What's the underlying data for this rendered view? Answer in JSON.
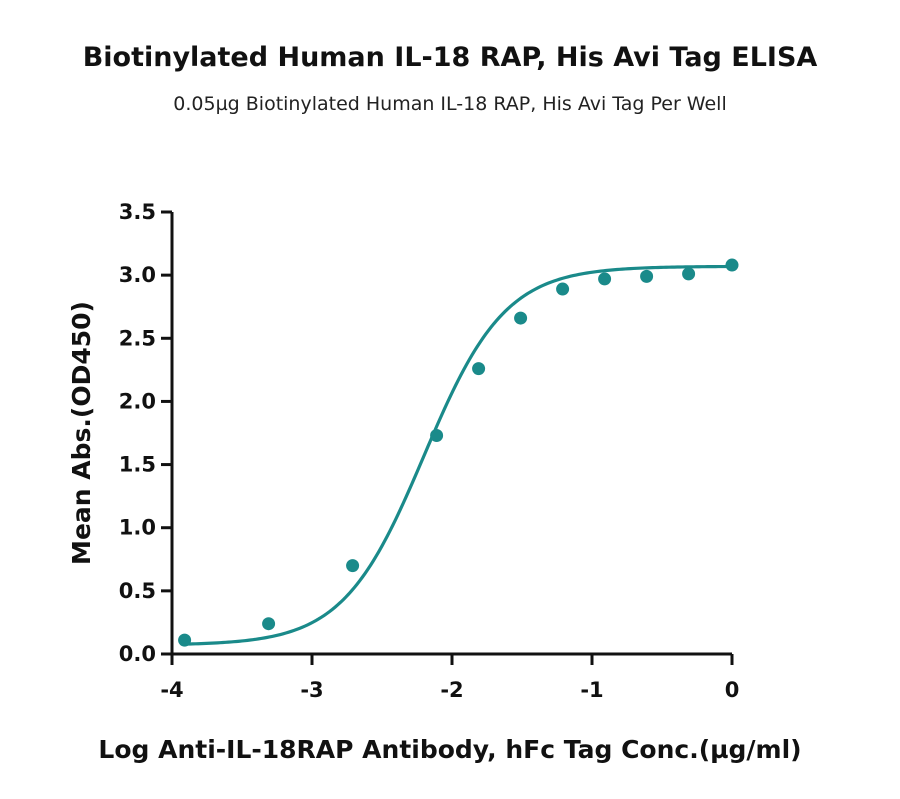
{
  "chart_data": {
    "type": "scatter",
    "title": "Biotinylated Human IL-18 RAP, His Avi Tag ELISA",
    "subtitle": "0.05µg Biotinylated Human IL-18 RAP, His Avi Tag Per Well",
    "xlabel": "Log Anti-IL-18RAP Antibody, hFc Tag Conc.(µg/ml)",
    "ylabel": "Mean Abs.(OD450)",
    "xlim": [
      -4,
      0
    ],
    "ylim": [
      0,
      3.5
    ],
    "x_ticks": [
      -4,
      -3,
      -2,
      -1,
      0
    ],
    "x_tick_labels": [
      "-4",
      "-3",
      "-2",
      "-1",
      "0"
    ],
    "y_ticks": [
      0,
      0.5,
      1,
      1.5,
      2,
      2.5,
      3,
      3.5
    ],
    "y_tick_labels": [
      "0.0",
      "0.5",
      "1.0",
      "1.5",
      "2.0",
      "2.5",
      "3.0",
      "3.5"
    ],
    "grid": false,
    "color": "#1a8a8a",
    "series": [
      {
        "points": [
          {
            "x": -3.91,
            "y": 0.11
          },
          {
            "x": -3.31,
            "y": 0.24
          },
          {
            "x": -2.71,
            "y": 0.7
          },
          {
            "x": -2.11,
            "y": 1.73
          },
          {
            "x": -1.81,
            "y": 2.26
          },
          {
            "x": -1.51,
            "y": 2.66
          },
          {
            "x": -1.21,
            "y": 2.89
          },
          {
            "x": -0.91,
            "y": 2.97
          },
          {
            "x": -0.61,
            "y": 2.99
          },
          {
            "x": -0.31,
            "y": 3.01
          },
          {
            "x": 0.0,
            "y": 3.08
          }
        ],
        "fit": {
          "model": "4PL",
          "bottom": 0.07,
          "top": 3.07,
          "logEC50": -2.2,
          "hill": 1.5
        }
      }
    ]
  }
}
